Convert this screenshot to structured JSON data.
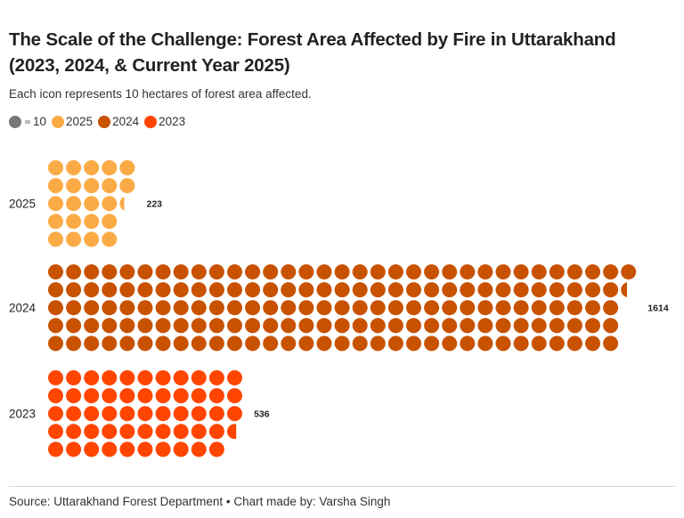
{
  "header": {
    "title": "The Scale of the Challenge: Forest Area Affected by Fire in Uttarakhand (2023, 2024, & Current Year 2025)",
    "subtitle": "Each icon represents 10 hectares of forest area affected."
  },
  "legend": {
    "unit_label": "= 10",
    "unit_color": "#777777",
    "items": [
      {
        "label": "2025",
        "color": "#FBAB45"
      },
      {
        "label": "2024",
        "color": "#C85200"
      },
      {
        "label": "2023",
        "color": "#FF4500"
      }
    ]
  },
  "chart_data": {
    "type": "pictogram",
    "title": "The Scale of the Challenge: Forest Area Affected by Fire in Uttarakhand (2023, 2024, & Current Year 2025)",
    "subtitle": "Each icon represents 10 hectares of forest area affected.",
    "unit_per_icon": 10,
    "rows_per_group": 5,
    "fill_order": "column-major",
    "categories": [
      "2025",
      "2024",
      "2023"
    ],
    "values": [
      223,
      1614,
      536
    ],
    "value_labels": [
      "223",
      "1614",
      "536"
    ],
    "colors": [
      "#FBAB45",
      "#C85200",
      "#FF4500"
    ],
    "xlabel": "",
    "ylabel": ""
  },
  "footer": {
    "source": "Source: Uttarakhand Forest Department • Chart made by: Varsha Singh"
  }
}
